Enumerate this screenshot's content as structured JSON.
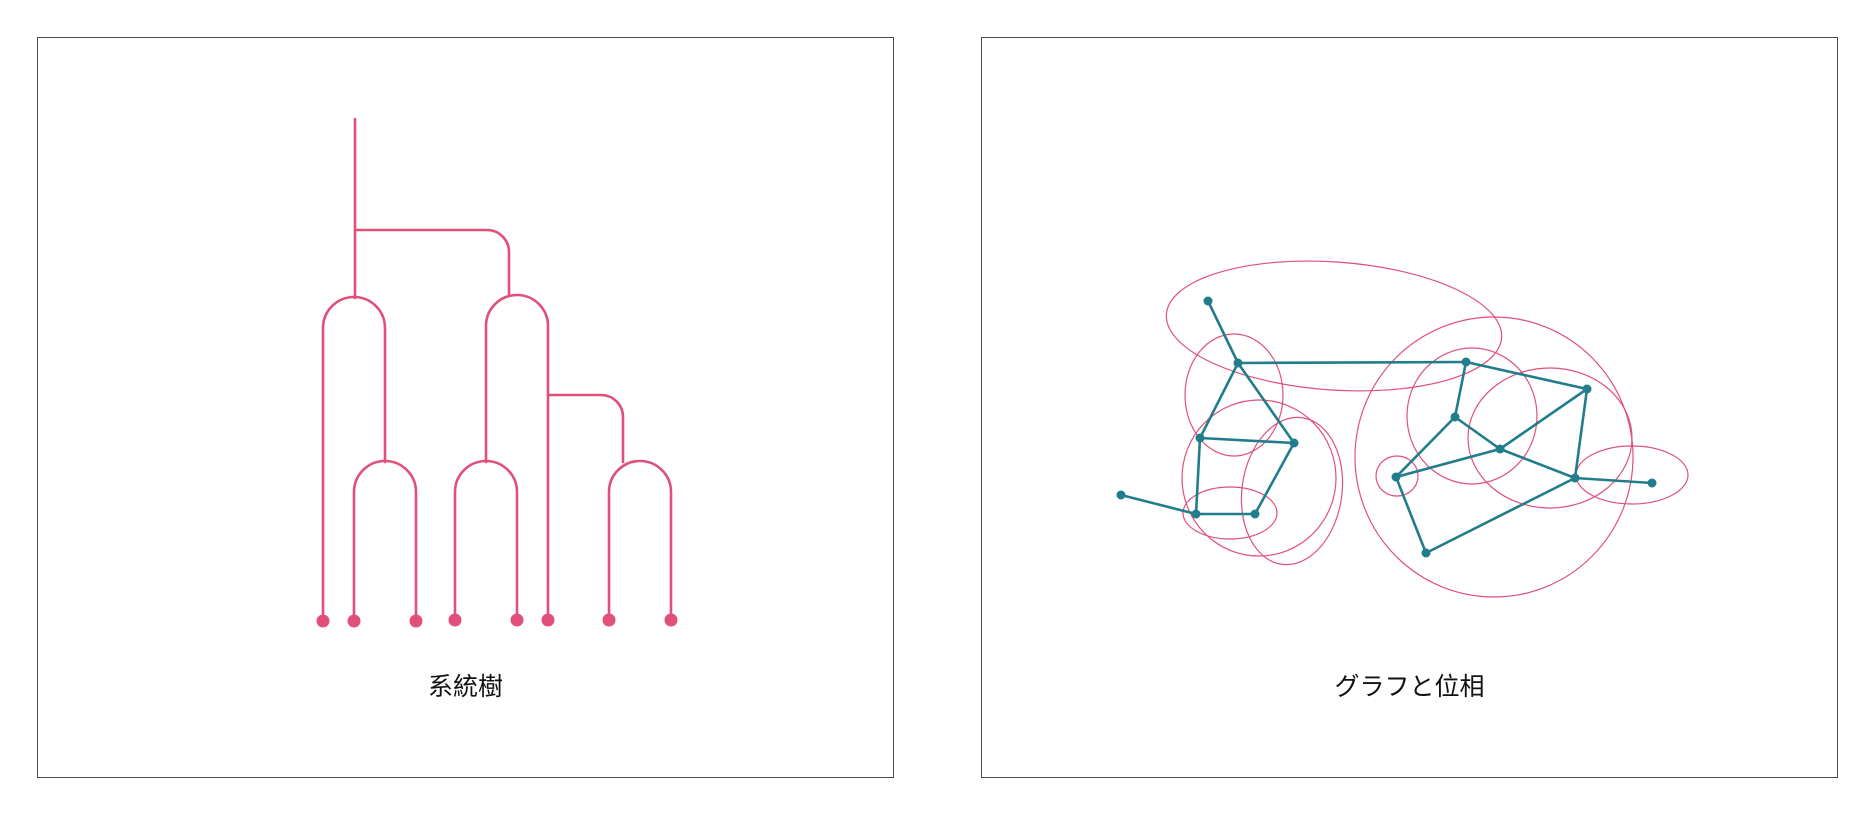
{
  "panels": {
    "left": {
      "caption": "系統樹"
    },
    "right": {
      "caption": "グラフと位相"
    }
  },
  "colors": {
    "tree": "#e0507a",
    "graph_edge": "#217c8c",
    "graph_node": "#217c8c",
    "topology": "#e0507a",
    "frame": "#4a4a4a"
  },
  "icons": {
    "left": "phylogenetic-tree-icon",
    "right": "graph-topology-icon"
  }
}
